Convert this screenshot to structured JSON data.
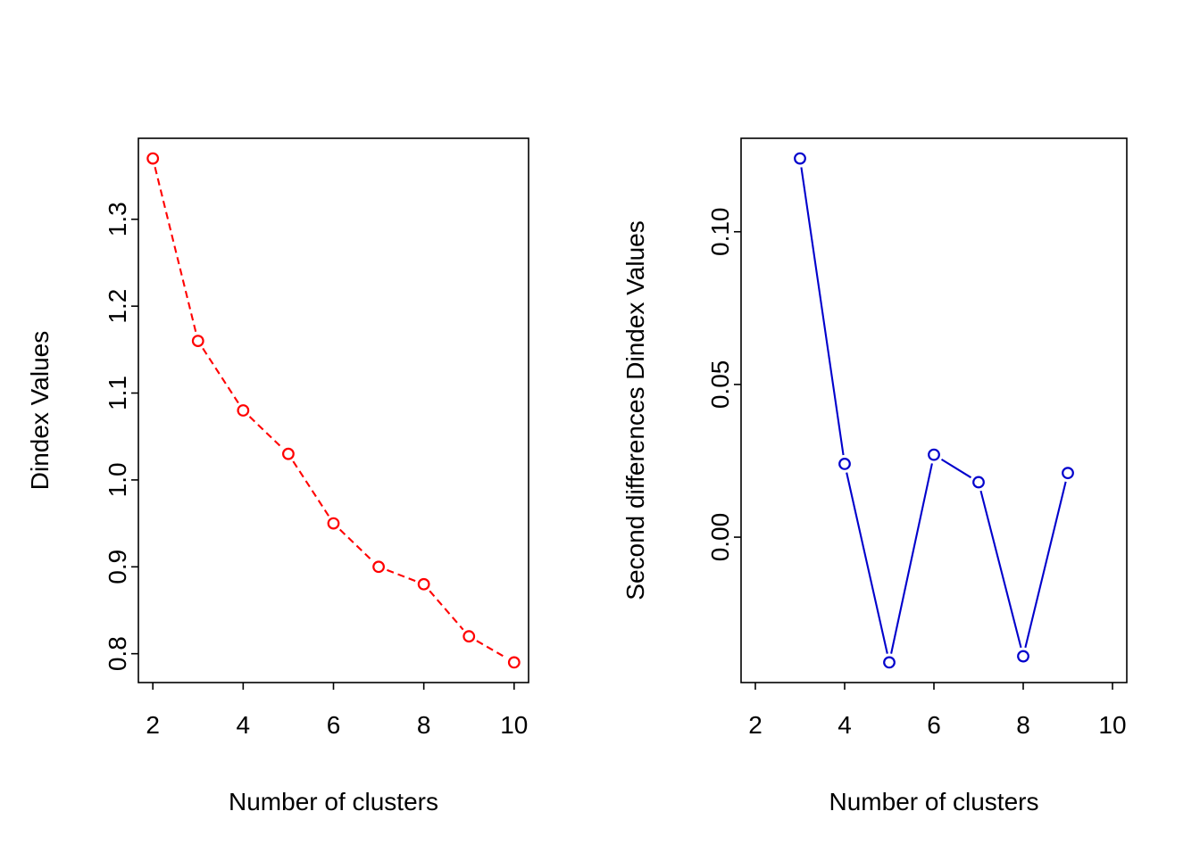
{
  "page": {
    "background_color": "#FFFFFF",
    "text_color": "#000000"
  },
  "chart_data": [
    {
      "type": "line",
      "panel": "left",
      "title": "",
      "xlabel": "Number of clusters",
      "ylabel": "Dindex Values",
      "series": [
        {
          "name": "Dindex",
          "x": [
            2,
            3,
            4,
            5,
            6,
            7,
            8,
            9,
            10
          ],
          "y": [
            1.37,
            1.16,
            1.08,
            1.03,
            0.95,
            0.9,
            0.88,
            0.82,
            0.79
          ],
          "color": "#FF0000",
          "line_style": "dashed",
          "marker": "open-circle"
        }
      ],
      "xlim": [
        2,
        10
      ],
      "xticks": [
        2,
        4,
        6,
        8,
        10
      ],
      "xtick_labels": [
        "2",
        "4",
        "6",
        "8",
        "10"
      ],
      "yticks": [
        0.8,
        0.9,
        1.0,
        1.1,
        1.2,
        1.3
      ],
      "ytick_labels": [
        "0.8",
        "0.9",
        "1.0",
        "1.1",
        "1.2",
        "1.3"
      ],
      "grid": false,
      "legend": "none"
    },
    {
      "type": "line",
      "panel": "right",
      "title": "",
      "xlabel": "Number of clusters",
      "ylabel": "Second differences Dindex Values",
      "series": [
        {
          "name": "Second differences Dindex",
          "x": [
            3,
            4,
            5,
            6,
            7,
            8,
            9
          ],
          "y": [
            0.124,
            0.024,
            -0.041,
            0.027,
            0.018,
            -0.039,
            0.021
          ],
          "color": "#0000CC",
          "line_style": "solid",
          "marker": "open-circle"
        }
      ],
      "xlim": [
        2,
        10
      ],
      "xticks": [
        2,
        4,
        6,
        8,
        10
      ],
      "xtick_labels": [
        "2",
        "4",
        "6",
        "8",
        "10"
      ],
      "yticks": [
        0.0,
        0.05,
        0.1
      ],
      "ytick_labels": [
        "0.00",
        "0.05",
        "0.10"
      ],
      "grid": false,
      "legend": "none"
    }
  ]
}
